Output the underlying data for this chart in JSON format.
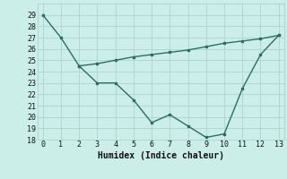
{
  "line1_x": [
    0,
    1,
    2,
    3,
    4,
    5,
    6,
    7,
    8,
    9,
    10,
    11,
    12,
    13
  ],
  "line1_y": [
    29,
    27,
    24.5,
    23,
    23,
    21.5,
    19.5,
    20.2,
    19.2,
    18.2,
    18.5,
    22.5,
    25.5,
    27.2
  ],
  "line2_x": [
    2,
    3,
    4,
    5,
    6,
    7,
    8,
    9,
    10,
    11,
    12,
    13
  ],
  "line2_y": [
    24.5,
    24.7,
    25.0,
    25.3,
    25.5,
    25.7,
    25.9,
    26.2,
    26.5,
    26.7,
    26.9,
    27.2
  ],
  "line_color": "#2a6e68",
  "bg_color": "#cceee8",
  "grid_major_color": "#b0d8d2",
  "xlabel": "Humidex (Indice chaleur)",
  "ylim": [
    18,
    30
  ],
  "xlim": [
    -0.3,
    13.3
  ],
  "yticks": [
    18,
    19,
    20,
    21,
    22,
    23,
    24,
    25,
    26,
    27,
    28,
    29
  ],
  "xticks": [
    0,
    1,
    2,
    3,
    4,
    5,
    6,
    7,
    8,
    9,
    10,
    11,
    12,
    13
  ],
  "xlabel_fontsize": 7,
  "tick_fontsize": 6
}
